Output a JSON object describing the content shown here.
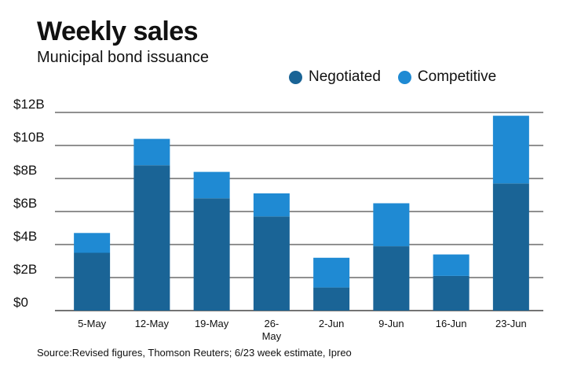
{
  "chart_data": {
    "type": "bar",
    "stacked": true,
    "title": "Weekly sales",
    "subtitle": "Municipal bond issuance",
    "categories": [
      "5-May",
      "12-May",
      "19-May",
      "26-May",
      "2-Jun",
      "9-Jun",
      "16-Jun",
      "23-Jun"
    ],
    "series": [
      {
        "name": "Negotiated",
        "color": "#1a6496",
        "values": [
          3.5,
          8.8,
          6.8,
          5.7,
          1.4,
          3.9,
          2.1,
          7.7
        ]
      },
      {
        "name": "Competitive",
        "color": "#1f8ad3",
        "values": [
          1.2,
          1.6,
          1.6,
          1.4,
          1.8,
          2.6,
          1.3,
          4.1
        ]
      }
    ],
    "y_ticks": [
      "$0",
      "$2B",
      "$4B",
      "$6B",
      "$8B",
      "$10B",
      "$12B"
    ],
    "ylim": [
      0,
      12
    ],
    "grid": true,
    "legend_position": "top-right",
    "source": "Source:Revised figures, Thomson Reuters; 6/23 week estimate, Ipreo"
  }
}
